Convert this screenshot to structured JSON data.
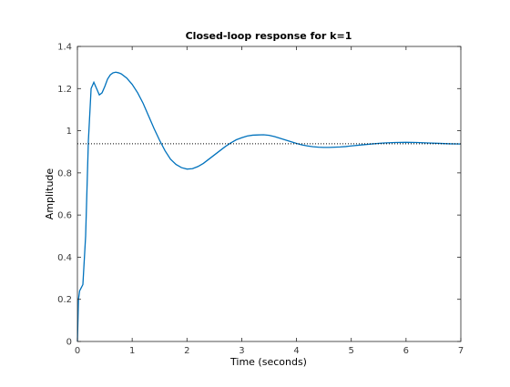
{
  "chart_data": {
    "type": "line",
    "title": "Closed-loop response for k=1",
    "xlabel": "Time (seconds)",
    "ylabel": "Amplitude",
    "xlim": [
      0,
      7
    ],
    "ylim": [
      0,
      1.4
    ],
    "xticks": [
      0,
      1,
      2,
      3,
      4,
      5,
      6,
      7
    ],
    "yticks": [
      0,
      0.2,
      0.4,
      0.6,
      0.8,
      1,
      1.2,
      1.4
    ],
    "xtick_labels": [
      "0",
      "1",
      "2",
      "3",
      "4",
      "5",
      "6",
      "7"
    ],
    "ytick_labels": [
      "0",
      "0.2",
      "0.4",
      "0.6",
      "0.8",
      "1",
      "1.2",
      "1.4"
    ],
    "grid": false,
    "box": true,
    "series": [
      {
        "style": "solid",
        "color": "#0072BD",
        "x": [
          0,
          0.02,
          0.04,
          0.06,
          0.1,
          0.15,
          0.2,
          0.25,
          0.3,
          0.35,
          0.4,
          0.45,
          0.5,
          0.55,
          0.6,
          0.65,
          0.7,
          0.75,
          0.8,
          0.9,
          1.0,
          1.1,
          1.2,
          1.3,
          1.4,
          1.5,
          1.6,
          1.7,
          1.8,
          1.9,
          2.0,
          2.1,
          2.2,
          2.3,
          2.4,
          2.5,
          2.6,
          2.7,
          2.8,
          2.9,
          3.0,
          3.1,
          3.2,
          3.3,
          3.4,
          3.5,
          3.6,
          3.7,
          3.8,
          3.9,
          4.0,
          4.1,
          4.2,
          4.3,
          4.4,
          4.5,
          4.6,
          4.7,
          4.8,
          4.9,
          5.0,
          5.2,
          5.4,
          5.6,
          5.8,
          6.0,
          6.2,
          6.4,
          6.6,
          6.8,
          7.0
        ],
        "y": [
          0,
          0.2,
          0.24,
          0.25,
          0.27,
          0.5,
          0.95,
          1.2,
          1.23,
          1.2,
          1.17,
          1.18,
          1.21,
          1.245,
          1.265,
          1.275,
          1.278,
          1.275,
          1.27,
          1.25,
          1.22,
          1.18,
          1.13,
          1.07,
          1.01,
          0.955,
          0.905,
          0.865,
          0.84,
          0.825,
          0.818,
          0.82,
          0.83,
          0.845,
          0.865,
          0.885,
          0.905,
          0.925,
          0.942,
          0.957,
          0.967,
          0.975,
          0.979,
          0.98,
          0.981,
          0.978,
          0.972,
          0.964,
          0.956,
          0.948,
          0.94,
          0.933,
          0.928,
          0.924,
          0.922,
          0.921,
          0.921,
          0.922,
          0.923,
          0.925,
          0.928,
          0.933,
          0.938,
          0.942,
          0.944,
          0.945,
          0.944,
          0.942,
          0.94,
          0.938,
          0.937
        ]
      },
      {
        "style": "dotted",
        "color": "#000000",
        "x": [
          0,
          7
        ],
        "y": [
          0.938,
          0.938
        ]
      }
    ]
  }
}
